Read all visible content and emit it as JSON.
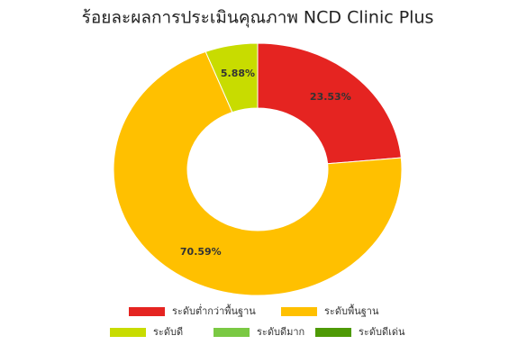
{
  "chart_data": {
    "type": "donut",
    "title": "ร้อยละผลการประเมินคุณภาพ NCD Clinic Plus",
    "categories": [
      "ระดับต่ำกว่าพื้นฐาน",
      "ระดับพื้นฐาน",
      "ระดับดี",
      "ระดับดีมาก",
      "ระดับดีเด่น"
    ],
    "values": [
      23.53,
      70.59,
      5.88,
      0,
      0
    ],
    "value_labels": [
      "23.53%",
      "70.59%",
      "5.88%",
      null,
      null
    ],
    "colors": [
      "#e52421",
      "#ffc000",
      "#c8dc00",
      "#7ac943",
      "#4e9a06"
    ],
    "legend": "bottom"
  }
}
